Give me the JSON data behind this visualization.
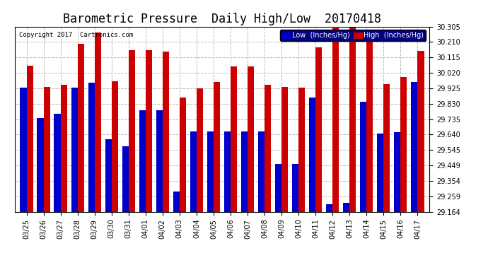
{
  "title": "Barometric Pressure  Daily High/Low  20170418",
  "copyright": "Copyright 2017  Cartronics.com",
  "legend_low": "Low  (Inches/Hg)",
  "legend_high": "High  (Inches/Hg)",
  "categories": [
    "03/25",
    "03/26",
    "03/27",
    "03/28",
    "03/29",
    "03/30",
    "03/31",
    "04/01",
    "04/02",
    "04/03",
    "04/04",
    "04/05",
    "04/06",
    "04/07",
    "04/08",
    "04/09",
    "04/10",
    "04/11",
    "04/12",
    "04/13",
    "04/14",
    "04/15",
    "04/16",
    "04/17"
  ],
  "low_values": [
    29.93,
    29.74,
    29.77,
    29.93,
    29.96,
    29.61,
    29.57,
    29.79,
    29.79,
    29.29,
    29.66,
    29.66,
    29.66,
    29.66,
    29.66,
    29.46,
    29.46,
    29.87,
    29.21,
    29.22,
    29.84,
    29.645,
    29.655,
    29.965
  ],
  "high_values": [
    30.065,
    29.935,
    29.945,
    30.2,
    30.27,
    29.97,
    30.16,
    30.16,
    30.15,
    29.87,
    29.925,
    29.965,
    30.06,
    30.06,
    29.945,
    29.935,
    29.93,
    30.175,
    30.31,
    30.3,
    30.22,
    29.95,
    29.995,
    30.155
  ],
  "low_color": "#0000cc",
  "high_color": "#cc0000",
  "background_color": "#ffffff",
  "plot_bg_color": "#ffffff",
  "grid_color": "#bbbbbb",
  "ylim_min": 29.164,
  "ylim_max": 30.305,
  "yticks": [
    29.164,
    29.259,
    29.354,
    29.449,
    29.545,
    29.64,
    29.735,
    29.83,
    29.925,
    30.02,
    30.115,
    30.21,
    30.305
  ],
  "title_fontsize": 12,
  "tick_fontsize": 7,
  "copyright_fontsize": 6.5,
  "legend_fontsize": 7,
  "bar_width": 0.38
}
